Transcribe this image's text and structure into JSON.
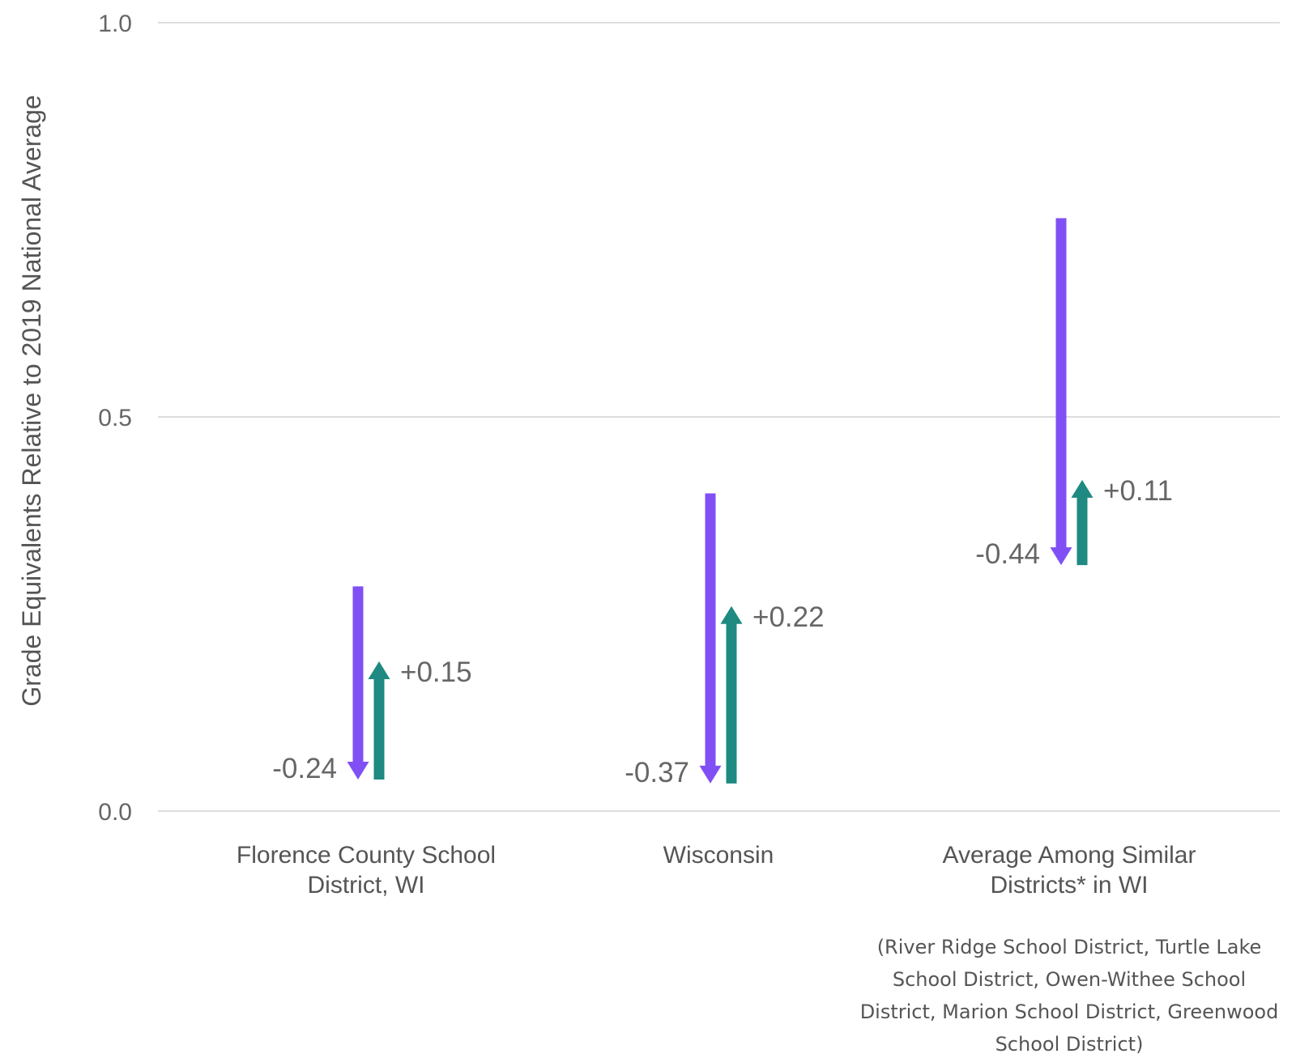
{
  "chart_data": {
    "type": "arrow",
    "title": "",
    "ylabel": "Grade Equivalents Relative to 2019 National Average",
    "xlabel": "",
    "ylim": [
      0,
      1
    ],
    "yticks": [
      "0.0",
      "0.5",
      "1.0"
    ],
    "grid": true,
    "colors": {
      "decline": "#8050f5",
      "recovery": "#1e8a82"
    },
    "categories": [
      {
        "label_lines": [
          "Florence County School",
          "District, WI"
        ],
        "decline": {
          "from": 0.285,
          "to": 0.04,
          "label": "-0.24"
        },
        "recovery": {
          "from": 0.04,
          "to": 0.19,
          "label": "+0.15"
        }
      },
      {
        "label_lines": [
          "Wisconsin"
        ],
        "decline": {
          "from": 0.403,
          "to": 0.035,
          "label": "-0.37"
        },
        "recovery": {
          "from": 0.035,
          "to": 0.26,
          "label": "+0.22"
        }
      },
      {
        "label_lines": [
          "Average Among Similar",
          "Districts* in WI"
        ],
        "decline": {
          "from": 0.752,
          "to": 0.312,
          "label": "-0.44"
        },
        "recovery": {
          "from": 0.312,
          "to": 0.42,
          "label": "+0.11"
        }
      }
    ],
    "footnote_lines": [
      "(River Ridge School District, Turtle Lake",
      "School District, Owen-Withee School",
      "District, Marion School District, Greenwood",
      "School District)"
    ]
  }
}
